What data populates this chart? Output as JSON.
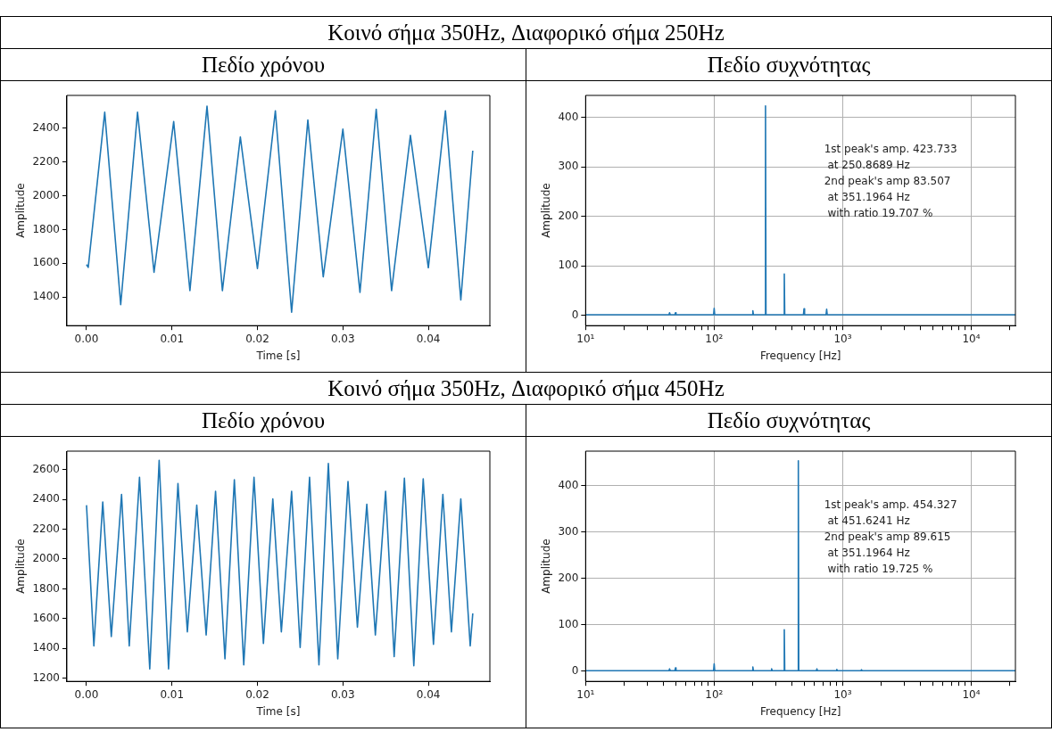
{
  "chart_data": [
    {
      "type": "line",
      "title": "Κοινό σήμα 350Hz, Διαφορικό σήμα 250Hz",
      "subtitle": "Πεδίο χρόνου",
      "xlabel": "Time [s]",
      "ylabel": "Amplitude",
      "color": "#1f77b4",
      "x": [
        0,
        0.0002,
        0.00213,
        0.004,
        0.00597,
        0.0079,
        0.0102,
        0.0121,
        0.0141,
        0.0159,
        0.018,
        0.02,
        0.0221,
        0.024,
        0.0259,
        0.0277,
        0.03,
        0.032,
        0.0339,
        0.0357,
        0.0379,
        0.04,
        0.042,
        0.0438,
        0.0452
      ],
      "values": [
        1592,
        1575,
        2495,
        1354,
        2495,
        1546,
        2440,
        1437,
        2531,
        1437,
        2349,
        1568,
        2504,
        1309,
        2449,
        1519,
        2395,
        1427,
        2513,
        1437,
        2358,
        1573,
        2504,
        1382,
        2267
      ],
      "xlim": [
        -0.0023,
        0.0472
      ],
      "ylim": [
        1230,
        2595
      ],
      "xticks": [
        {
          "value": 0,
          "label": "0.00"
        },
        {
          "value": 0.01,
          "label": "0.01"
        },
        {
          "value": 0.02,
          "label": "0.02"
        },
        {
          "value": 0.03,
          "label": "0.03"
        },
        {
          "value": 0.04,
          "label": "0.04"
        }
      ],
      "yticks": [
        1400,
        1600,
        1800,
        2000,
        2200,
        2400
      ]
    },
    {
      "type": "line",
      "subtitle": "Πεδίο συχνότητας",
      "xlabel": "Frequency [Hz]",
      "ylabel": "Amplitude",
      "color": "#1f77b4",
      "log": "x",
      "grid": true,
      "x": [
        10,
        44.5,
        45,
        45.5,
        49.5,
        50,
        50.5,
        99,
        100,
        101,
        198,
        200,
        202,
        248,
        250.8689,
        253,
        348,
        351.1964,
        354,
        495,
        500,
        505,
        742,
        750,
        758,
        22050
      ],
      "values": [
        1,
        1,
        5,
        1,
        1,
        5,
        1,
        1,
        14,
        1,
        1,
        9,
        1,
        1,
        423.733,
        1,
        1,
        83.507,
        1,
        1,
        13,
        1,
        1,
        12,
        1,
        1
      ],
      "xlim": [
        10,
        22050
      ],
      "ylim": [
        -21,
        445
      ],
      "xticks": [
        {
          "value": 10,
          "label": "10¹"
        },
        {
          "value": 20,
          "label": null
        },
        {
          "value": 30,
          "label": null
        },
        {
          "value": 40,
          "label": null
        },
        {
          "value": 50,
          "label": null
        },
        {
          "value": 60,
          "label": null
        },
        {
          "value": 70,
          "label": null
        },
        {
          "value": 80,
          "label": null
        },
        {
          "value": 90,
          "label": null
        },
        {
          "value": 100,
          "label": "10²"
        },
        {
          "value": 200,
          "label": null
        },
        {
          "value": 300,
          "label": null
        },
        {
          "value": 400,
          "label": null
        },
        {
          "value": 500,
          "label": null
        },
        {
          "value": 600,
          "label": null
        },
        {
          "value": 700,
          "label": null
        },
        {
          "value": 800,
          "label": null
        },
        {
          "value": 900,
          "label": null
        },
        {
          "value": 1000,
          "label": "10³"
        },
        {
          "value": 2000,
          "label": null
        },
        {
          "value": 3000,
          "label": null
        },
        {
          "value": 4000,
          "label": null
        },
        {
          "value": 5000,
          "label": null
        },
        {
          "value": 6000,
          "label": null
        },
        {
          "value": 7000,
          "label": null
        },
        {
          "value": 8000,
          "label": null
        },
        {
          "value": 9000,
          "label": null
        },
        {
          "value": 10000,
          "label": "10⁴"
        },
        {
          "value": 20000,
          "label": null
        }
      ],
      "yticks": [
        0,
        100,
        200,
        300,
        400
      ],
      "annotations": [
        "1st peak's amp. 423.733\n at 250.8689 Hz\n2nd peak's amp 83.507\n at 351.1964 Hz\n with ratio 19.707 %"
      ]
    },
    {
      "type": "line",
      "title": "Κοινό σήμα 350Hz, Διαφορικό σήμα 450Hz",
      "subtitle": "Πεδίο χρόνου",
      "xlabel": "Time [s]",
      "ylabel": "Amplitude",
      "color": "#1f77b4",
      "x": [
        0,
        0.00086,
        0.0019,
        0.0029,
        0.0041,
        0.005,
        0.0062,
        0.0074,
        0.0085,
        0.0096,
        0.0107,
        0.0118,
        0.0129,
        0.014,
        0.0151,
        0.0162,
        0.0173,
        0.0184,
        0.0196,
        0.0207,
        0.0218,
        0.0228,
        0.024,
        0.025,
        0.0261,
        0.0272,
        0.0283,
        0.0294,
        0.0306,
        0.0317,
        0.0328,
        0.0338,
        0.035,
        0.036,
        0.0372,
        0.0383,
        0.0394,
        0.0406,
        0.0417,
        0.0427,
        0.0438,
        0.0449,
        0.0452
      ],
      "values": [
        2361,
        1417,
        2382,
        1480,
        2434,
        1417,
        2548,
        1262,
        2662,
        1262,
        2507,
        1511,
        2361,
        1490,
        2455,
        1330,
        2532,
        1289,
        2548,
        1434,
        2403,
        1511,
        2455,
        1407,
        2548,
        1289,
        2641,
        1330,
        2520,
        1542,
        2368,
        1490,
        2455,
        1345,
        2542,
        1283,
        2538,
        1428,
        2434,
        1511,
        2403,
        1417,
        1635
      ],
      "xlim": [
        -0.0023,
        0.0472
      ],
      "ylim": [
        1179,
        2724
      ],
      "xticks": [
        {
          "value": 0,
          "label": "0.00"
        },
        {
          "value": 0.01,
          "label": "0.01"
        },
        {
          "value": 0.02,
          "label": "0.02"
        },
        {
          "value": 0.03,
          "label": "0.03"
        },
        {
          "value": 0.04,
          "label": "0.04"
        }
      ],
      "yticks": [
        1200,
        1400,
        1600,
        1800,
        2000,
        2200,
        2400,
        2600
      ]
    },
    {
      "type": "line",
      "subtitle": "Πεδίο συχνότητας",
      "xlabel": "Frequency [Hz]",
      "ylabel": "Amplitude",
      "color": "#1f77b4",
      "log": "x",
      "grid": true,
      "x": [
        10,
        44.5,
        45,
        45.5,
        49.5,
        50,
        50.5,
        99,
        100,
        101,
        198,
        200,
        202,
        277,
        280,
        283,
        348,
        351.1964,
        354,
        448,
        451.6241,
        455,
        624,
        630,
        636,
        891,
        900,
        909,
        1386,
        1400,
        1414,
        22050
      ],
      "values": [
        1,
        1,
        5,
        1,
        1,
        7,
        1,
        1,
        16,
        1,
        1,
        9,
        1,
        1,
        5,
        1,
        1,
        89.615,
        1,
        1,
        454.327,
        1,
        1,
        5,
        1,
        1,
        4,
        1,
        1,
        3,
        1,
        1
      ],
      "xlim": [
        10,
        22050
      ],
      "ylim": [
        -22,
        475
      ],
      "xticks": [
        {
          "value": 10,
          "label": "10¹"
        },
        {
          "value": 20,
          "label": null
        },
        {
          "value": 30,
          "label": null
        },
        {
          "value": 40,
          "label": null
        },
        {
          "value": 50,
          "label": null
        },
        {
          "value": 60,
          "label": null
        },
        {
          "value": 70,
          "label": null
        },
        {
          "value": 80,
          "label": null
        },
        {
          "value": 90,
          "label": null
        },
        {
          "value": 100,
          "label": "10²"
        },
        {
          "value": 200,
          "label": null
        },
        {
          "value": 300,
          "label": null
        },
        {
          "value": 400,
          "label": null
        },
        {
          "value": 500,
          "label": null
        },
        {
          "value": 600,
          "label": null
        },
        {
          "value": 700,
          "label": null
        },
        {
          "value": 800,
          "label": null
        },
        {
          "value": 900,
          "label": null
        },
        {
          "value": 1000,
          "label": "10³"
        },
        {
          "value": 2000,
          "label": null
        },
        {
          "value": 3000,
          "label": null
        },
        {
          "value": 4000,
          "label": null
        },
        {
          "value": 5000,
          "label": null
        },
        {
          "value": 6000,
          "label": null
        },
        {
          "value": 7000,
          "label": null
        },
        {
          "value": 8000,
          "label": null
        },
        {
          "value": 9000,
          "label": null
        },
        {
          "value": 10000,
          "label": "10⁴"
        },
        {
          "value": 20000,
          "label": null
        }
      ],
      "yticks": [
        0,
        100,
        200,
        300,
        400
      ],
      "annotations": [
        "1st peak's amp. 454.327\n at 451.6241 Hz\n2nd peak's amp 89.615\n at 351.1964 Hz\n with ratio 19.725 %"
      ]
    }
  ]
}
